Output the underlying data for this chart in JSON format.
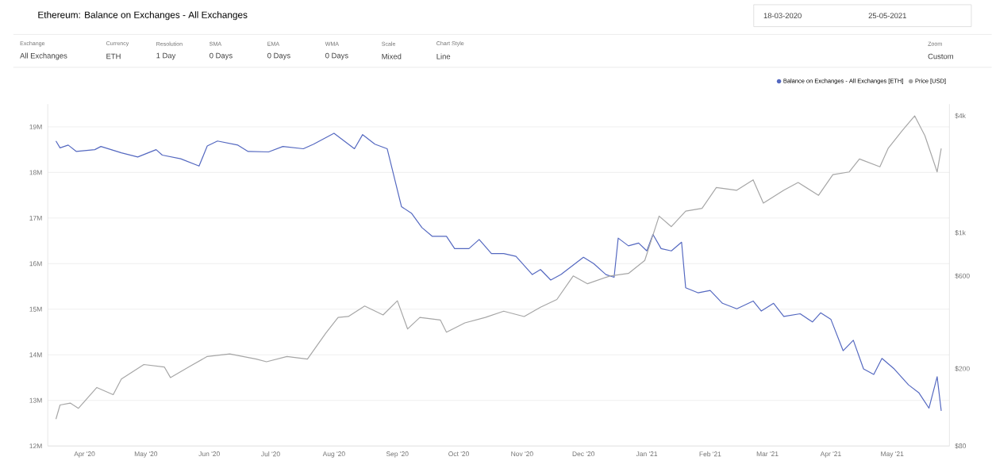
{
  "chart_data": {
    "type": "line",
    "title": "Ethereum: Balance on Exchanges - All Exchanges",
    "annotations": [
      "18-03-2020",
      "25-05-2021",
      "Exchange",
      "All Exchanges",
      "Currency",
      "ETH",
      "Resolution",
      "1 Day",
      "SMA",
      "0 Days",
      "EMA",
      "0 Days",
      "WMA",
      "0 Days",
      "Scale",
      "Mixed",
      "Chart Style",
      "Line",
      "Zoom",
      "Custom"
    ],
    "xlim": [
      "2020-03-14",
      "2021-05-29"
    ],
    "xticks": [
      {
        "value": "2020-04-01",
        "label": "Apr '20"
      },
      {
        "value": "2020-05-01",
        "label": "May '20"
      },
      {
        "value": "2020-06-01",
        "label": "Jun '20"
      },
      {
        "value": "2020-07-01",
        "label": "Jul '20"
      },
      {
        "value": "2020-08-01",
        "label": "Aug '20"
      },
      {
        "value": "2020-09-01",
        "label": "Sep '20"
      },
      {
        "value": "2020-10-01",
        "label": "Oct '20"
      },
      {
        "value": "2020-11-01",
        "label": "Nov '20"
      },
      {
        "value": "2020-12-01",
        "label": "Dec '20"
      },
      {
        "value": "2021-01-01",
        "label": "Jan '21"
      },
      {
        "value": "2021-02-01",
        "label": "Feb '21"
      },
      {
        "value": "2021-03-01",
        "label": "Mar '21"
      },
      {
        "value": "2021-04-01",
        "label": "Apr '21"
      },
      {
        "value": "2021-05-01",
        "label": "May '21"
      }
    ],
    "ylim": [
      12,
      19.5
    ],
    "yticks": [
      {
        "value": 12,
        "label": "12M"
      },
      {
        "value": 13,
        "label": "13M"
      },
      {
        "value": 14,
        "label": "14M"
      },
      {
        "value": 15,
        "label": "15M"
      },
      {
        "value": 16,
        "label": "16M"
      },
      {
        "value": 17,
        "label": "17M"
      },
      {
        "value": 18,
        "label": "18M"
      },
      {
        "value": 19,
        "label": "19M"
      }
    ],
    "y2lim": [
      80,
      4600
    ],
    "y2ticks": [
      {
        "value": 80,
        "label": "$80"
      },
      {
        "value": 200,
        "label": "$200"
      },
      {
        "value": 600,
        "label": "$600"
      },
      {
        "value": 1000,
        "label": "$1k"
      },
      {
        "value": 4000,
        "label": "$4k"
      }
    ],
    "log": "y2",
    "grid": "y",
    "legend": "top right",
    "series": [
      {
        "name": "Balance on Exchanges - All Exchanges [ETH]",
        "color": "#5468c0",
        "x": [
          "2020-03-18",
          "2020-03-20",
          "2020-03-24",
          "2020-03-28",
          "2020-04-06",
          "2020-04-09",
          "2020-04-19",
          "2020-04-27",
          "2020-05-06",
          "2020-05-09",
          "2020-05-18",
          "2020-05-27",
          "2020-05-31",
          "2020-06-05",
          "2020-06-15",
          "2020-06-20",
          "2020-06-30",
          "2020-07-07",
          "2020-07-17",
          "2020-07-22",
          "2020-08-01",
          "2020-08-11",
          "2020-08-15",
          "2020-08-21",
          "2020-08-27",
          "2020-09-03",
          "2020-09-08",
          "2020-09-13",
          "2020-09-18",
          "2020-09-25",
          "2020-09-29",
          "2020-10-06",
          "2020-10-11",
          "2020-10-17",
          "2020-10-23",
          "2020-10-29",
          "2020-11-06",
          "2020-11-10",
          "2020-11-15",
          "2020-11-20",
          "2020-12-01",
          "2020-12-06",
          "2020-12-12",
          "2020-12-16",
          "2020-12-18",
          "2020-12-23",
          "2020-12-28",
          "2021-01-01",
          "2021-01-04",
          "2021-01-08",
          "2021-01-13",
          "2021-01-18",
          "2021-01-20",
          "2021-01-26",
          "2021-02-01",
          "2021-02-07",
          "2021-02-14",
          "2021-02-22",
          "2021-02-26",
          "2021-03-04",
          "2021-03-09",
          "2021-03-17",
          "2021-03-23",
          "2021-03-27",
          "2021-04-01",
          "2021-04-07",
          "2021-04-12",
          "2021-04-17",
          "2021-04-22",
          "2021-04-26",
          "2021-05-02",
          "2021-05-09",
          "2021-05-14",
          "2021-05-19",
          "2021-05-23",
          "2021-05-25"
        ],
        "values": [
          18.69,
          18.54,
          18.6,
          18.46,
          18.5,
          18.57,
          18.43,
          18.34,
          18.5,
          18.38,
          18.3,
          18.14,
          18.58,
          18.69,
          18.6,
          18.46,
          18.45,
          18.57,
          18.52,
          18.62,
          18.86,
          18.52,
          18.83,
          18.62,
          18.52,
          17.25,
          17.1,
          16.79,
          16.6,
          16.6,
          16.33,
          16.33,
          16.53,
          16.22,
          16.22,
          16.16,
          15.76,
          15.87,
          15.64,
          15.76,
          16.14,
          16.0,
          15.76,
          15.7,
          16.56,
          16.39,
          16.45,
          16.28,
          16.64,
          16.33,
          16.28,
          16.47,
          15.47,
          15.36,
          15.41,
          15.13,
          15.01,
          15.18,
          14.96,
          15.13,
          14.84,
          14.9,
          14.72,
          14.92,
          14.78,
          14.09,
          14.32,
          13.69,
          13.57,
          13.92,
          13.69,
          13.34,
          13.17,
          12.83,
          13.52,
          12.77
        ]
      },
      {
        "name": "Price [USD]",
        "color": "#a6a6a6",
        "axis": "y2",
        "x": [
          "2020-03-18",
          "2020-03-20",
          "2020-03-25",
          "2020-03-29",
          "2020-04-07",
          "2020-04-15",
          "2020-04-19",
          "2020-04-30",
          "2020-05-10",
          "2020-05-13",
          "2020-05-22",
          "2020-05-31",
          "2020-06-11",
          "2020-06-24",
          "2020-06-29",
          "2020-07-09",
          "2020-07-19",
          "2020-07-28",
          "2020-08-03",
          "2020-08-08",
          "2020-08-16",
          "2020-08-25",
          "2020-09-01",
          "2020-09-06",
          "2020-09-12",
          "2020-09-22",
          "2020-09-25",
          "2020-10-04",
          "2020-10-14",
          "2020-10-23",
          "2020-10-30",
          "2020-11-02",
          "2020-11-10",
          "2020-11-18",
          "2020-11-26",
          "2020-12-03",
          "2020-12-14",
          "2020-12-23",
          "2020-12-31",
          "2021-01-07",
          "2021-01-13",
          "2021-01-20",
          "2021-01-28",
          "2021-02-04",
          "2021-02-14",
          "2021-02-22",
          "2021-02-27",
          "2021-03-09",
          "2021-03-16",
          "2021-03-26",
          "2021-04-02",
          "2021-04-10",
          "2021-04-15",
          "2021-04-25",
          "2021-04-29",
          "2021-05-06",
          "2021-05-12",
          "2021-05-17",
          "2021-05-20",
          "2021-05-23",
          "2021-05-25"
        ],
        "values": [
          110,
          130,
          133,
          125,
          160,
          147,
          177,
          210,
          204,
          180,
          204,
          231,
          238,
          224,
          217,
          231,
          224,
          305,
          367,
          371,
          420,
          378,
          447,
          320,
          367,
          356,
          308,
          344,
          367,
          395,
          378,
          371,
          414,
          454,
          600,
          547,
          600,
          618,
          721,
          1219,
          1076,
          1294,
          1336,
          1710,
          1656,
          1875,
          1422,
          1656,
          1815,
          1560,
          1995,
          2058,
          2399,
          2188,
          2716,
          3367,
          4000,
          3162,
          2553,
          2058,
          2716
        ]
      }
    ]
  }
}
